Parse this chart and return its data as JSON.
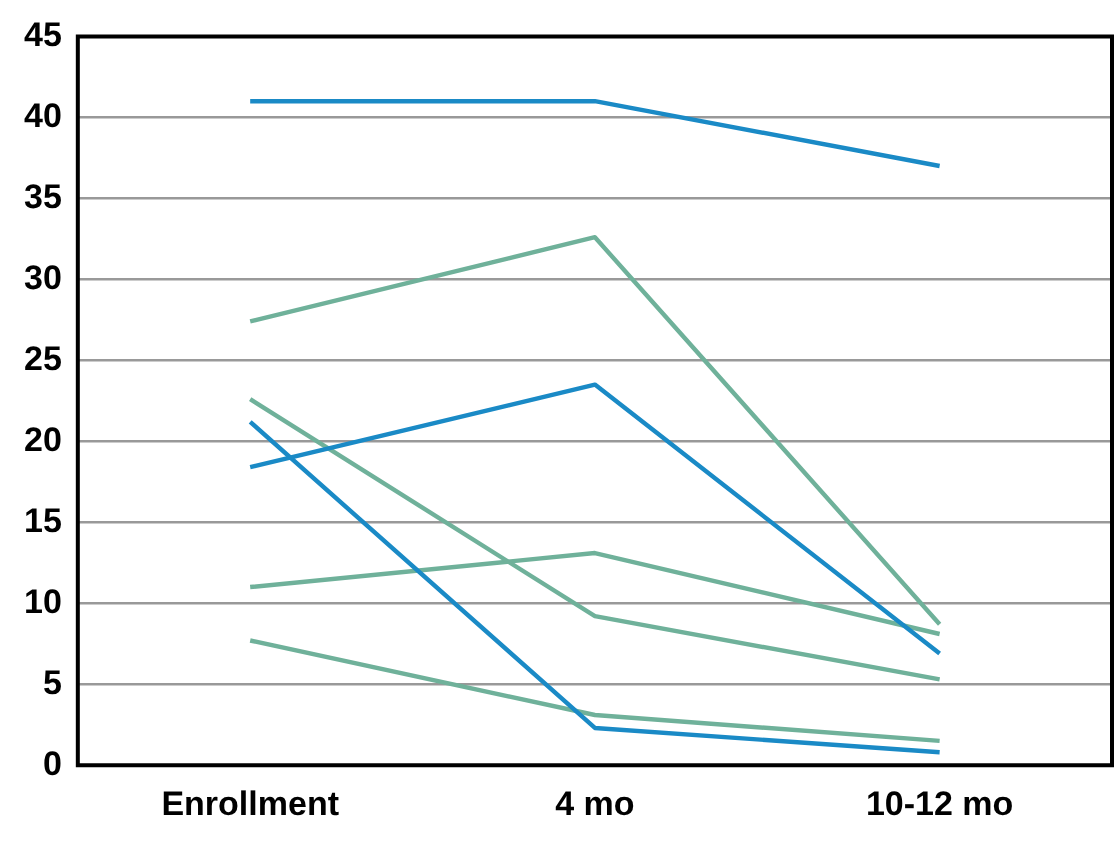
{
  "chart_data": {
    "type": "line",
    "categories": [
      "Enrollment",
      "4 mo",
      "10-12 mo"
    ],
    "series": [
      {
        "color": "#1a8ac6",
        "values": [
          41,
          41,
          37
        ]
      },
      {
        "color": "#1a8ac6",
        "values": [
          18.4,
          23.5,
          6.9
        ]
      },
      {
        "color": "#1a8ac6",
        "values": [
          21.2,
          2.3,
          0.8
        ]
      },
      {
        "color": "#6fb19a",
        "values": [
          27.4,
          32.6,
          8.7
        ]
      },
      {
        "color": "#6fb19a",
        "values": [
          22.6,
          9.2,
          5.3
        ]
      },
      {
        "color": "#6fb19a",
        "values": [
          11,
          13.1,
          8.1
        ]
      },
      {
        "color": "#6fb19a",
        "values": [
          7.7,
          3.1,
          1.5
        ]
      }
    ],
    "ylim": [
      0,
      45
    ],
    "yticks": [
      0,
      5,
      10,
      15,
      20,
      25,
      30,
      35,
      40,
      45
    ],
    "grid": "y",
    "legend": false,
    "marker": "none",
    "line_style": "solid"
  }
}
